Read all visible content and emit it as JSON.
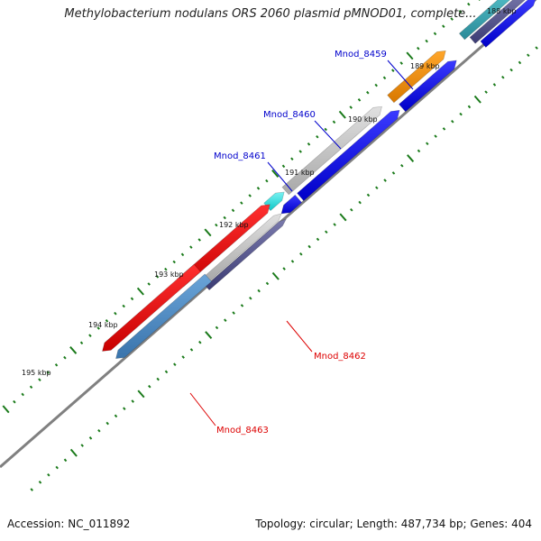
{
  "title": "Methylobacterium nodulans ORS 2060 plasmid pMNOD01, complete...",
  "footer": {
    "accession": "Accession: NC_011892",
    "summary": "Topology: circular; Length: 487,734 bp; Genes: 404"
  },
  "ticks": [
    "188 kbp",
    "189 kbp",
    "190 kbp",
    "191 kbp",
    "192 kbp",
    "193 kbp",
    "194 kbp",
    "195 kbp"
  ],
  "genes": [
    {
      "label": "Mnod_8459",
      "color": "#0000cc"
    },
    {
      "label": "Mnod_8460",
      "color": "#0000cc"
    },
    {
      "label": "Mnod_8461",
      "color": "#0000cc"
    },
    {
      "label": "Mnod_8462",
      "color": "#dd0000"
    },
    {
      "label": "Mnod_8463",
      "color": "#dd0000"
    }
  ],
  "colors": {
    "backbone": "#808080",
    "tick_marks": "#1a7a1a",
    "blue": "#0000ee",
    "red": "#ee0000",
    "orange": "#f08c00",
    "cyan": "#1ed8d8",
    "gray": "#bdbdbd",
    "steelblue": "#4a86c0",
    "slate": "#5a5a8c",
    "teal": "#3a9aa8"
  }
}
